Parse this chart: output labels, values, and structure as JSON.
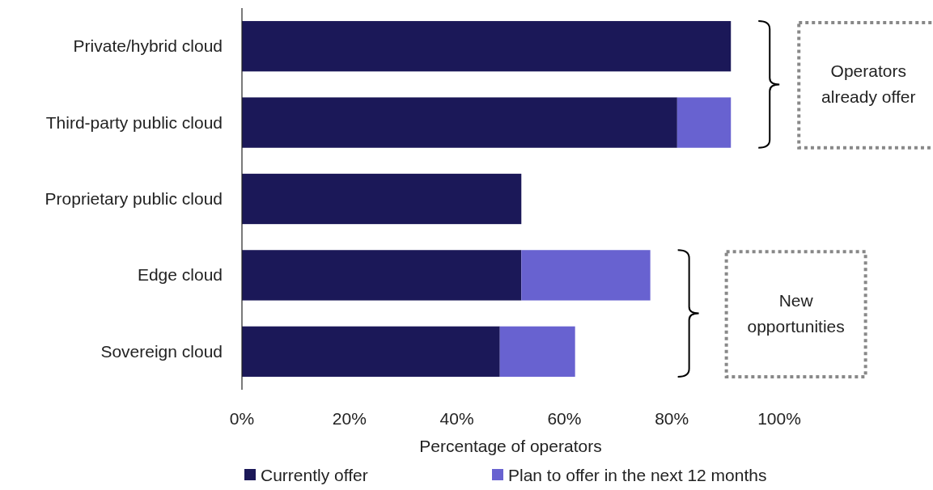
{
  "chart_data": {
    "type": "bar",
    "orientation": "horizontal",
    "stacked": true,
    "categories": [
      "Private/hybrid cloud",
      "Third-party public cloud",
      "Proprietary public cloud",
      "Edge cloud",
      "Sovereign cloud"
    ],
    "series": [
      {
        "name": "Currently offer",
        "color": "#1b1858",
        "values": [
          91,
          81,
          52,
          52,
          48
        ]
      },
      {
        "name": "Plan to offer in the next 12 months",
        "color": "#6862d0",
        "values": [
          0,
          10,
          0,
          24,
          14
        ]
      }
    ],
    "xlim": [
      0,
      100
    ],
    "xticks": [
      {
        "value": 0,
        "label": "0%"
      },
      {
        "value": 20,
        "label": "20%"
      },
      {
        "value": 40,
        "label": "40%"
      },
      {
        "value": 60,
        "label": "60%"
      },
      {
        "value": 80,
        "label": "80%"
      },
      {
        "value": 100,
        "label": "100%"
      }
    ],
    "xlabel": "Percentage of operators",
    "legend": "bottom",
    "grid": false,
    "annotations": [
      "Operators already offer",
      "New opportunities"
    ]
  }
}
